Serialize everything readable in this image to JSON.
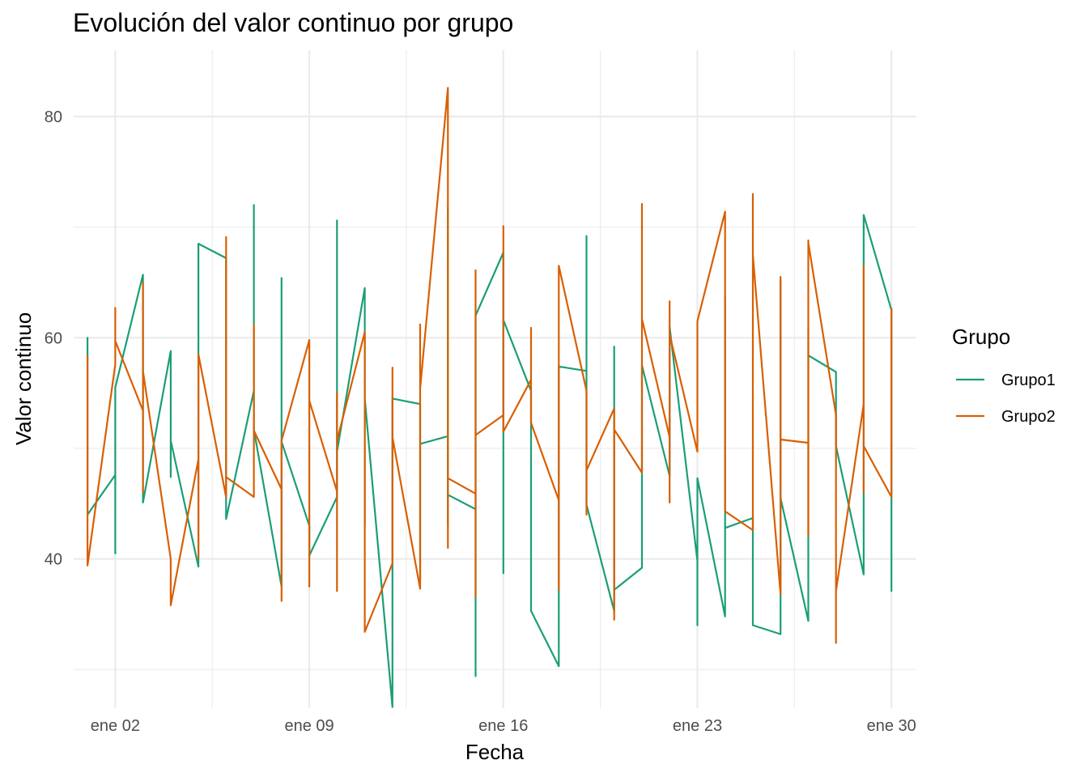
{
  "chart_data": {
    "type": "line",
    "title": "Evolución del valor continuo por grupo",
    "xlabel": "Fecha",
    "ylabel": "Valor continuo",
    "x_start": "2024-01-01",
    "x_ticks": [
      "ene 02",
      "ene 09",
      "ene 16",
      "ene 23",
      "ene 30"
    ],
    "y_ticks": [
      40,
      60,
      80
    ],
    "ylim": [
      26.5,
      86
    ],
    "legend_title": "Grupo",
    "legend_position": "right",
    "grid": true,
    "series": [
      {
        "name": "Grupo1",
        "color": "#1b9e77",
        "points": [
          [
            1,
            51.2
          ],
          [
            1,
            60.0
          ],
          [
            1,
            44.0
          ],
          [
            2,
            47.6
          ],
          [
            2,
            40.5
          ],
          [
            2,
            55.5
          ],
          [
            3,
            65.7
          ],
          [
            3,
            45.1
          ],
          [
            4,
            58.8
          ],
          [
            4,
            47.4
          ],
          [
            4,
            50.7
          ],
          [
            5,
            39.3
          ],
          [
            5,
            51.4
          ],
          [
            5,
            68.5
          ],
          [
            6,
            67.2
          ],
          [
            6,
            43.6
          ],
          [
            7,
            55.2
          ],
          [
            7,
            72.0
          ],
          [
            7,
            51.7
          ],
          [
            8,
            37.5
          ],
          [
            8,
            65.4
          ],
          [
            8,
            50.6
          ],
          [
            9,
            43.0
          ],
          [
            9,
            40.3
          ],
          [
            10,
            45.6
          ],
          [
            10,
            70.6
          ],
          [
            10,
            49.7
          ],
          [
            11,
            64.5
          ],
          [
            11,
            43.0
          ],
          [
            11,
            54.5
          ],
          [
            12,
            26.6
          ],
          [
            12,
            54.5
          ],
          [
            13,
            54.0
          ],
          [
            13,
            38.0
          ],
          [
            13,
            50.4
          ],
          [
            14,
            51.1
          ],
          [
            14,
            71.8
          ],
          [
            14,
            43.0
          ],
          [
            14,
            45.8
          ],
          [
            15,
            44.5
          ],
          [
            15,
            29.4
          ],
          [
            15,
            62.0
          ],
          [
            16,
            67.7
          ],
          [
            16,
            38.7
          ],
          [
            16,
            61.6
          ],
          [
            17,
            55.2
          ],
          [
            17,
            43.0
          ],
          [
            17,
            35.3
          ],
          [
            18,
            30.3
          ],
          [
            18,
            57.4
          ],
          [
            19,
            57.0
          ],
          [
            19,
            69.2
          ],
          [
            19,
            44.9
          ],
          [
            20,
            35.3
          ],
          [
            20,
            59.2
          ],
          [
            20,
            37.2
          ],
          [
            21,
            39.2
          ],
          [
            21,
            57.5
          ],
          [
            22,
            47.5
          ],
          [
            22,
            61.0
          ],
          [
            23,
            39.8
          ],
          [
            23,
            34.0
          ],
          [
            23,
            47.3
          ],
          [
            24,
            34.8
          ],
          [
            24,
            63.7
          ],
          [
            24,
            42.8
          ],
          [
            25,
            43.7
          ],
          [
            25,
            34.0
          ],
          [
            26,
            33.2
          ],
          [
            26,
            65.2
          ],
          [
            26,
            45.5
          ],
          [
            27,
            34.4
          ],
          [
            27,
            61.0
          ],
          [
            27,
            58.4
          ],
          [
            28,
            56.9
          ],
          [
            28,
            50.2
          ],
          [
            29,
            38.6
          ],
          [
            29,
            71.1
          ],
          [
            30,
            62.5
          ],
          [
            30,
            37.1
          ],
          [
            30,
            42.0
          ]
        ]
      },
      {
        "name": "Grupo2",
        "color": "#d95f02",
        "points": [
          [
            1,
            58.4
          ],
          [
            1,
            39.4
          ],
          [
            2,
            57.6
          ],
          [
            2,
            62.7
          ],
          [
            2,
            59.7
          ],
          [
            3,
            53.4
          ],
          [
            3,
            65.0
          ],
          [
            3,
            46.0
          ],
          [
            3,
            57.0
          ],
          [
            4,
            40.0
          ],
          [
            4,
            35.8
          ],
          [
            5,
            49.0
          ],
          [
            5,
            40.1
          ],
          [
            5,
            58.5
          ],
          [
            6,
            45.6
          ],
          [
            6,
            69.1
          ],
          [
            6,
            47.4
          ],
          [
            7,
            45.6
          ],
          [
            7,
            61.2
          ],
          [
            7,
            51.6
          ],
          [
            8,
            46.3
          ],
          [
            8,
            36.2
          ],
          [
            8,
            50.7
          ],
          [
            9,
            59.8
          ],
          [
            9,
            37.5
          ],
          [
            9,
            54.3
          ],
          [
            10,
            46.1
          ],
          [
            10,
            37.1
          ],
          [
            10,
            55.0
          ],
          [
            10,
            50.7
          ],
          [
            11,
            60.5
          ],
          [
            11,
            33.4
          ],
          [
            12,
            39.6
          ],
          [
            12,
            57.3
          ],
          [
            12,
            51.0
          ],
          [
            13,
            37.3
          ],
          [
            13,
            61.2
          ],
          [
            13,
            55.4
          ],
          [
            14,
            82.6
          ],
          [
            14,
            41.0
          ],
          [
            14,
            47.3
          ],
          [
            15,
            45.9
          ],
          [
            15,
            66.1
          ],
          [
            15,
            36.6
          ],
          [
            15,
            51.2
          ],
          [
            16,
            53.0
          ],
          [
            16,
            70.1
          ],
          [
            16,
            51.5
          ],
          [
            17,
            56.2
          ],
          [
            17,
            60.9
          ],
          [
            17,
            52.3
          ],
          [
            18,
            45.3
          ],
          [
            18,
            37.2
          ],
          [
            18,
            66.5
          ],
          [
            19,
            55.2
          ],
          [
            19,
            44.0
          ],
          [
            19,
            48.0
          ],
          [
            20,
            53.6
          ],
          [
            20,
            34.5
          ],
          [
            20,
            51.7
          ],
          [
            21,
            47.8
          ],
          [
            21,
            72.1
          ],
          [
            21,
            61.7
          ],
          [
            22,
            51.0
          ],
          [
            22,
            63.3
          ],
          [
            22,
            45.1
          ],
          [
            22,
            60.3
          ],
          [
            23,
            49.7
          ],
          [
            23,
            61.5
          ],
          [
            24,
            71.4
          ],
          [
            24,
            44.3
          ],
          [
            25,
            42.6
          ],
          [
            25,
            73.0
          ],
          [
            25,
            67.5
          ],
          [
            26,
            36.8
          ],
          [
            26,
            65.5
          ],
          [
            26,
            50.8
          ],
          [
            27,
            50.5
          ],
          [
            27,
            68.8
          ],
          [
            27,
            42.1
          ],
          [
            27,
            68.6
          ],
          [
            28,
            53.0
          ],
          [
            28,
            32.4
          ],
          [
            28,
            37.1
          ],
          [
            29,
            54.0
          ],
          [
            29,
            46.0
          ],
          [
            29,
            66.5
          ],
          [
            29,
            50.2
          ],
          [
            30,
            45.6
          ],
          [
            30,
            62.7
          ]
        ]
      }
    ]
  }
}
